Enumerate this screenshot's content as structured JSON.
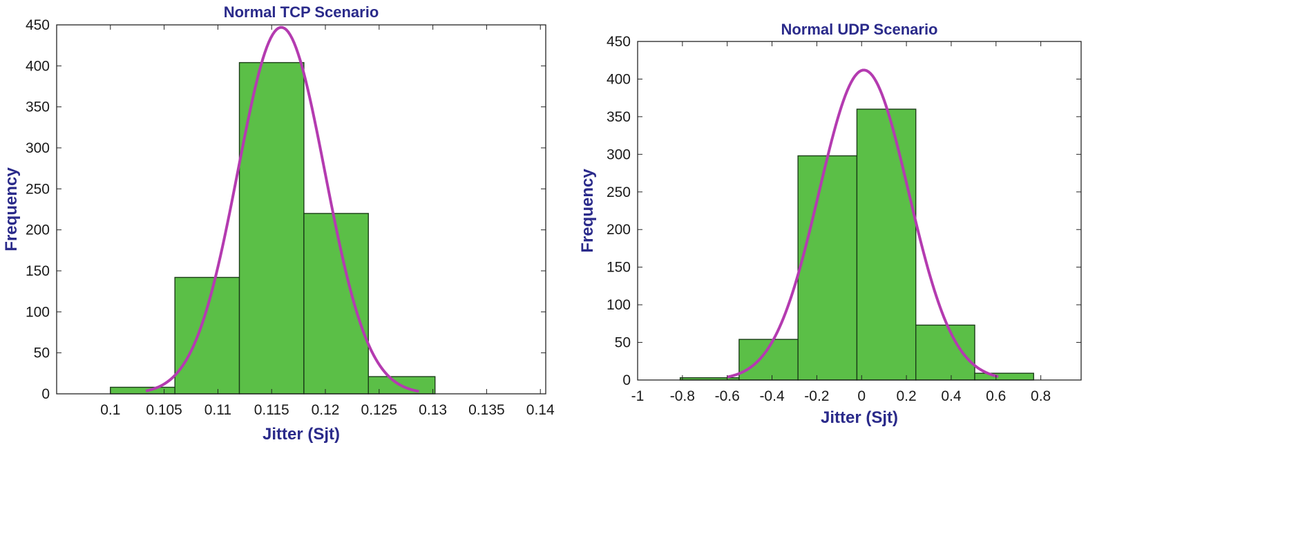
{
  "chart_data": [
    {
      "type": "bar",
      "title": "Normal TCP Scenario",
      "xlabel": "Jitter (Sjt)",
      "ylabel": "Frequency",
      "xlim": [
        0.095,
        0.1405
      ],
      "ylim": [
        0,
        450
      ],
      "xticks": [
        0.1,
        0.105,
        0.11,
        0.115,
        0.12,
        0.125,
        0.13,
        0.135,
        0.14
      ],
      "yticks": [
        0,
        50,
        100,
        150,
        200,
        250,
        300,
        350,
        400,
        450
      ],
      "bins": [
        {
          "x0": 0.1,
          "x1": 0.106,
          "value": 8
        },
        {
          "x0": 0.106,
          "x1": 0.112,
          "value": 142
        },
        {
          "x0": 0.112,
          "x1": 0.118,
          "value": 404
        },
        {
          "x0": 0.118,
          "x1": 0.124,
          "value": 220
        },
        {
          "x0": 0.124,
          "x1": 0.1302,
          "value": 21
        }
      ],
      "fit_curve": {
        "type": "normal",
        "mean": 0.1159,
        "std": 0.00405,
        "peak": 447,
        "x_range": [
          0.1033,
          0.1287
        ]
      },
      "grid": false
    },
    {
      "type": "bar",
      "title": "Normal UDP Scenario",
      "xlabel": "Jitter (Sjt)",
      "ylabel": "Frequency",
      "xlim": [
        -1,
        0.98
      ],
      "ylim": [
        0,
        450
      ],
      "xticks": [
        -1,
        -0.8,
        -0.6,
        -0.4,
        -0.2,
        0,
        0.2,
        0.4,
        0.6,
        0.8
      ],
      "xticklabels": [
        "-1",
        "-0.8",
        "-0.6",
        "-0.4",
        "-0.2",
        "0",
        "0.2",
        "0.4",
        "0.6",
        "0.8"
      ],
      "yticks": [
        0,
        50,
        100,
        150,
        200,
        250,
        300,
        350,
        400,
        450
      ],
      "bins": [
        {
          "x0": -0.81,
          "x1": -0.547,
          "value": 3
        },
        {
          "x0": -0.547,
          "x1": -0.284,
          "value": 54
        },
        {
          "x0": -0.284,
          "x1": -0.021,
          "value": 298
        },
        {
          "x0": -0.021,
          "x1": 0.242,
          "value": 360
        },
        {
          "x0": 0.242,
          "x1": 0.505,
          "value": 73
        },
        {
          "x0": 0.505,
          "x1": 0.768,
          "value": 9
        }
      ],
      "fit_curve": {
        "type": "normal",
        "mean": 0.01,
        "std": 0.2,
        "peak": 412,
        "x_range": [
          -0.6,
          0.61
        ]
      },
      "grid": false
    }
  ]
}
